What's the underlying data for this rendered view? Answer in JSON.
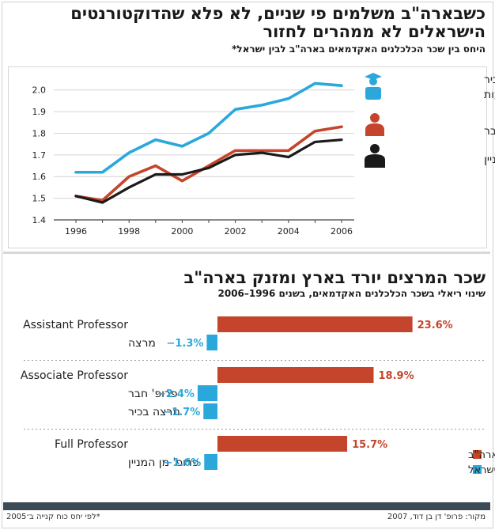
{
  "header": {
    "title_line1": "כשבארה\"ב משלמים פי שניים, לא פלא שהדוקטורנטים",
    "title_line2": "הישראלים לא ממהרים לחזור",
    "subtitle": "היחס בין שכר הכלכלנים האקדמאים בארה\"ב לבין ישראל*"
  },
  "section2": {
    "title": "שכר המרצים יורד בארץ ומזנק בארה\"ב",
    "subtitle": "שינוי ריאלי בשכר הכלכלנים האקדמאים, בשנים 1996–2006"
  },
  "footer": {
    "source": "מקור: פרופ' דן בן דוד, 2007",
    "note": "*לפי יחס כוח קנייה ב־2005"
  },
  "colors": {
    "cyan": "#2aa8dc",
    "red": "#c4452b",
    "black": "#1a1a1a"
  },
  "chart_data": [
    {
      "type": "line",
      "x": [
        1996,
        1997,
        1998,
        1999,
        2000,
        2001,
        2002,
        2003,
        2004,
        2005,
        2006
      ],
      "xticks": [
        "1996",
        "1998",
        "2000",
        "2002",
        "2004",
        "2006"
      ],
      "yticks": [
        "1.4",
        "1.5",
        "1.6",
        "1.7",
        "1.8",
        "1.9",
        "2.0"
      ],
      "ylim": [
        1.4,
        2.05
      ],
      "grid": "horizontal",
      "legend_position": "right",
      "series": [
        {
          "name": "סגל בכיר ללא קביעות",
          "color_key": "cyan",
          "icon": "graduate-icon",
          "values": [
            1.62,
            1.62,
            1.71,
            1.77,
            1.74,
            1.8,
            1.91,
            1.93,
            1.96,
            2.03,
            2.02
          ]
        },
        {
          "name": "פרופ' חבר",
          "color_key": "red",
          "icon": "person-icon",
          "values": [
            1.51,
            1.49,
            1.6,
            1.65,
            1.58,
            1.65,
            1.72,
            1.72,
            1.72,
            1.81,
            1.83
          ]
        },
        {
          "name": "פרופ' מן המניין",
          "color_key": "black",
          "icon": "professor-icon",
          "values": [
            1.51,
            1.48,
            1.55,
            1.61,
            1.61,
            1.64,
            1.7,
            1.71,
            1.69,
            1.76,
            1.77
          ]
        }
      ]
    },
    {
      "type": "bar",
      "orientation": "horizontal",
      "xlim": [
        -3,
        25
      ],
      "legend_position": "bottom-right",
      "legend": [
        {
          "name": "ארה\"ב",
          "color_key": "red"
        },
        {
          "name": "ישראל",
          "color_key": "cyan"
        }
      ],
      "groups": [
        {
          "bars": [
            {
              "label": "Assistant Professor",
              "value": 23.6,
              "text": "23.6%",
              "color_key": "red"
            },
            {
              "label": "מרצה",
              "value": -1.3,
              "text": "−1.3%",
              "color_key": "cyan"
            }
          ]
        },
        {
          "bars": [
            {
              "label": "Associate Professor",
              "value": 18.9,
              "text": "18.9%",
              "color_key": "red"
            },
            {
              "label": "פרופ' חבר",
              "value": -2.4,
              "text": "−2.4%",
              "color_key": "cyan"
            },
            {
              "label": "מרצה בכיר",
              "value": -1.7,
              "text": "−1.7%",
              "color_key": "cyan"
            }
          ]
        },
        {
          "bars": [
            {
              "label": "Full Professor",
              "value": 15.7,
              "text": "15.7%",
              "color_key": "red"
            },
            {
              "label": "פרופ' מן המניין",
              "value": -1.6,
              "text": "−1.6%",
              "color_key": "cyan"
            }
          ]
        }
      ]
    }
  ]
}
